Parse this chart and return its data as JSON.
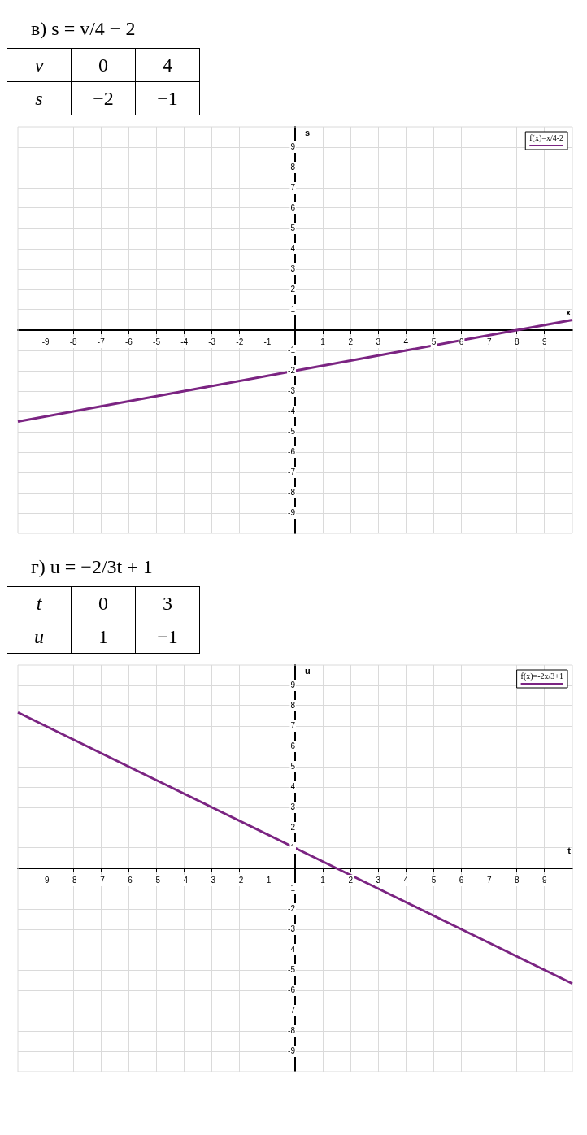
{
  "chart_data": [
    {
      "type": "line",
      "title": "в) s = v/4 − 2",
      "annotations": [
        "v",
        "0",
        "4",
        "s",
        "−2",
        "−1"
      ],
      "xlabel": "x",
      "ylabel": "s",
      "x": [
        -10,
        -4,
        0,
        4,
        8,
        10
      ],
      "series": [
        {
          "name": "f(x)=x/4-2",
          "color": "#7b2482",
          "values": [
            -4.5,
            -3,
            -2,
            -1,
            0,
            0.5
          ]
        }
      ],
      "xlim": [
        -10,
        10
      ],
      "ylim": [
        -10,
        10
      ],
      "xticks": [
        -9,
        -8,
        -7,
        -6,
        -5,
        -4,
        -3,
        -2,
        -1,
        1,
        2,
        3,
        4,
        5,
        6,
        7,
        8,
        9
      ],
      "yticks": [
        -9,
        -8,
        -7,
        -6,
        -5,
        -4,
        -3,
        -2,
        -1,
        1,
        2,
        3,
        4,
        5,
        6,
        7,
        8,
        9
      ],
      "grid": true,
      "legend": "top right",
      "marker": "none",
      "line_style": "solid"
    },
    {
      "type": "line",
      "title": "г) u = −2/3t + 1",
      "annotations": [
        "t",
        "0",
        "3",
        "u",
        "1",
        "−1"
      ],
      "xlabel": "t",
      "ylabel": "u",
      "x": [
        -10,
        -6,
        -3,
        0,
        3,
        6,
        10
      ],
      "series": [
        {
          "name": "f(x)=-2x/3+1",
          "color": "#7b2482",
          "values": [
            7.67,
            5,
            3,
            1,
            -1,
            -3,
            -5.67
          ]
        }
      ],
      "xlim": [
        -10,
        10
      ],
      "ylim": [
        -10,
        10
      ],
      "xticks": [
        -9,
        -8,
        -7,
        -6,
        -5,
        -4,
        -3,
        -2,
        -1,
        1,
        2,
        3,
        4,
        5,
        6,
        7,
        8,
        9
      ],
      "yticks": [
        -9,
        -8,
        -7,
        -6,
        -5,
        -4,
        -3,
        -2,
        -1,
        1,
        2,
        3,
        4,
        5,
        6,
        7,
        8,
        9
      ],
      "grid": true,
      "legend": "top right",
      "marker": "none",
      "line_style": "solid"
    }
  ]
}
